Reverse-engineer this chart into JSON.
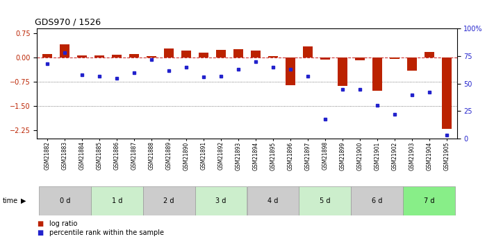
{
  "title": "GDS970 / 1526",
  "samples": [
    "GSM21882",
    "GSM21883",
    "GSM21884",
    "GSM21885",
    "GSM21886",
    "GSM21887",
    "GSM21888",
    "GSM21889",
    "GSM21890",
    "GSM21891",
    "GSM21892",
    "GSM21893",
    "GSM21894",
    "GSM21895",
    "GSM21896",
    "GSM21897",
    "GSM21898",
    "GSM21899",
    "GSM21900",
    "GSM21901",
    "GSM21902",
    "GSM21903",
    "GSM21904",
    "GSM21905"
  ],
  "log_ratio": [
    0.12,
    0.42,
    0.08,
    0.07,
    0.09,
    0.12,
    0.06,
    0.28,
    0.22,
    0.16,
    0.25,
    0.26,
    0.22,
    0.05,
    -0.85,
    0.35,
    -0.05,
    -0.87,
    -0.07,
    -1.02,
    -0.04,
    -0.4,
    0.18,
    -2.2
  ],
  "percentile_rank": [
    68,
    78,
    58,
    57,
    55,
    60,
    72,
    62,
    65,
    56,
    57,
    63,
    70,
    65,
    63,
    57,
    18,
    45,
    45,
    30,
    22,
    40,
    42,
    3
  ],
  "time_groups": [
    {
      "label": "0 d",
      "start": 0,
      "end": 3,
      "color": "#cccccc"
    },
    {
      "label": "1 d",
      "start": 3,
      "end": 6,
      "color": "#cceecc"
    },
    {
      "label": "2 d",
      "start": 6,
      "end": 9,
      "color": "#cccccc"
    },
    {
      "label": "3 d",
      "start": 9,
      "end": 12,
      "color": "#cceecc"
    },
    {
      "label": "4 d",
      "start": 12,
      "end": 15,
      "color": "#cccccc"
    },
    {
      "label": "5 d",
      "start": 15,
      "end": 18,
      "color": "#cceecc"
    },
    {
      "label": "6 d",
      "start": 18,
      "end": 21,
      "color": "#cccccc"
    },
    {
      "label": "7 d",
      "start": 21,
      "end": 24,
      "color": "#88ee88"
    }
  ],
  "ylim_left": [
    -2.5,
    0.9
  ],
  "yticks_left": [
    0.75,
    0.0,
    -0.75,
    -1.5,
    -2.25
  ],
  "yticks_right": [
    100,
    75,
    50,
    25,
    0
  ],
  "bar_color": "#bb2200",
  "dot_color": "#2222cc",
  "zero_line_color": "#cc3333",
  "dotted_line_color": "#555555",
  "background_color": "#ffffff",
  "xlim": [
    -0.6,
    23.6
  ]
}
